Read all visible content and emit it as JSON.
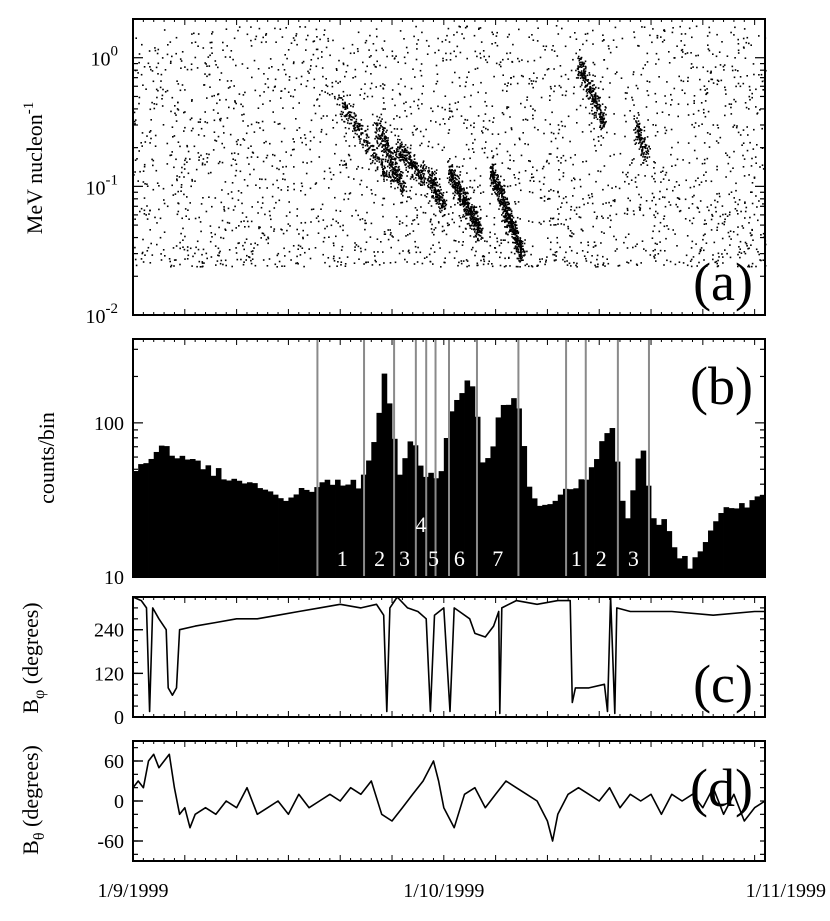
{
  "chart_data": [
    {
      "panel": "a",
      "type": "scatter",
      "panel_label": "(a)",
      "ylabel": "MeV nucleon",
      "ylabel_sup": "-1",
      "y_scale": "log",
      "ylim": [
        0.01,
        2.0
      ],
      "xlim": [
        0,
        61
      ],
      "yticks": [
        {
          "value": 1,
          "base": "10",
          "exp": "0"
        },
        {
          "value": 0.1,
          "base": "10",
          "exp": "-1"
        },
        {
          "value": 0.01,
          "base": "10",
          "exp": "-2"
        }
      ],
      "background": {
        "x_range": [
          0,
          61
        ],
        "y_range": [
          0.024,
          1.8
        ],
        "count": 2600
      },
      "clusters": [
        {
          "x": [
            20,
            25
          ],
          "y": [
            0.45,
            0.11
          ],
          "count": 260
        },
        {
          "x": [
            23.5,
            26
          ],
          "y": [
            0.3,
            0.1
          ],
          "count": 280
        },
        {
          "x": [
            25.5,
            28
          ],
          "y": [
            0.2,
            0.12
          ],
          "count": 240
        },
        {
          "x": [
            28.5,
            30
          ],
          "y": [
            0.12,
            0.07
          ],
          "count": 180
        },
        {
          "x": [
            30.5,
            33.5
          ],
          "y": [
            0.13,
            0.045
          ],
          "count": 460
        },
        {
          "x": [
            34.5,
            37.5
          ],
          "y": [
            0.14,
            0.03
          ],
          "count": 520
        },
        {
          "x": [
            43,
            45.5
          ],
          "y": [
            0.9,
            0.3
          ],
          "count": 280
        },
        {
          "x": [
            48.5,
            49.5
          ],
          "y": [
            0.3,
            0.18
          ],
          "count": 120
        }
      ]
    },
    {
      "panel": "b",
      "type": "bar",
      "panel_label": "(b)",
      "ylabel": "counts/bin",
      "y_scale": "log",
      "ylim": [
        10,
        350
      ],
      "xlim": [
        0,
        61
      ],
      "bin_width": 0.5,
      "yticks": [
        {
          "value": 10,
          "label": "10"
        },
        {
          "value": 100,
          "label": "100"
        }
      ],
      "profile": [
        [
          0,
          50
        ],
        [
          3,
          70
        ],
        [
          6,
          55
        ],
        [
          9,
          45
        ],
        [
          12,
          38
        ],
        [
          15,
          33
        ],
        [
          18,
          40
        ],
        [
          22,
          40
        ],
        [
          23.5,
          80
        ],
        [
          24.3,
          230
        ],
        [
          25,
          100
        ],
        [
          25.7,
          45
        ],
        [
          26.5,
          70
        ],
        [
          27,
          90
        ],
        [
          27.5,
          55
        ],
        [
          28.2,
          45
        ],
        [
          29,
          45
        ],
        [
          29.8,
          50
        ],
        [
          30.3,
          80
        ],
        [
          31,
          140
        ],
        [
          32,
          180
        ],
        [
          33,
          160
        ],
        [
          33.8,
          50
        ],
        [
          34.5,
          60
        ],
        [
          35.5,
          130
        ],
        [
          36.5,
          140
        ],
        [
          37.5,
          120
        ],
        [
          38,
          45
        ],
        [
          39,
          30
        ],
        [
          40,
          28
        ],
        [
          41,
          32
        ],
        [
          42,
          38
        ],
        [
          43,
          40
        ],
        [
          44,
          45
        ],
        [
          45,
          70
        ],
        [
          46,
          100
        ],
        [
          46.5,
          85
        ],
        [
          47,
          40
        ],
        [
          47.5,
          24
        ],
        [
          48,
          28
        ],
        [
          48.5,
          50
        ],
        [
          49.2,
          75
        ],
        [
          49.8,
          40
        ],
        [
          50.5,
          20
        ],
        [
          51.5,
          26
        ],
        [
          52.2,
          15
        ],
        [
          53,
          13
        ],
        [
          54,
          12
        ],
        [
          55,
          16
        ],
        [
          56,
          22
        ],
        [
          57,
          27
        ],
        [
          58,
          28
        ],
        [
          59,
          30
        ],
        [
          60,
          32
        ],
        [
          61,
          34
        ]
      ],
      "event_lines_x": [
        17.8,
        22.3,
        25.2,
        27.3,
        28.3,
        29.2,
        30.5,
        33.2,
        37.2,
        41.8,
        43.7,
        46.8,
        49.8
      ],
      "event_labels": [
        {
          "text": "1",
          "x": 20.2,
          "row": "low"
        },
        {
          "text": "2",
          "x": 23.8,
          "row": "low"
        },
        {
          "text": "3",
          "x": 26.2,
          "row": "low"
        },
        {
          "text": "4",
          "x": 27.8,
          "row": "high"
        },
        {
          "text": "5",
          "x": 29.0,
          "row": "low"
        },
        {
          "text": "6",
          "x": 31.5,
          "row": "low"
        },
        {
          "text": "7",
          "x": 35.2,
          "row": "low"
        },
        {
          "text": "1",
          "x": 42.8,
          "row": "low"
        },
        {
          "text": "2",
          "x": 45.2,
          "row": "low"
        },
        {
          "text": "3",
          "x": 48.3,
          "row": "low"
        }
      ]
    },
    {
      "panel": "c",
      "type": "line",
      "panel_label": "(c)",
      "ylabel": "B",
      "ylabel_sub": "φ",
      "ylabel_unit": " (degrees)",
      "ylim": [
        0,
        330
      ],
      "xlim": [
        0,
        61
      ],
      "yticks": [
        0,
        120,
        240
      ],
      "points": [
        [
          0,
          330
        ],
        [
          0.8,
          320
        ],
        [
          1.3,
          300
        ],
        [
          1.6,
          15
        ],
        [
          1.9,
          300
        ],
        [
          2.5,
          270
        ],
        [
          3.2,
          240
        ],
        [
          3.4,
          80
        ],
        [
          3.8,
          60
        ],
        [
          4.2,
          80
        ],
        [
          4.5,
          240
        ],
        [
          6,
          250
        ],
        [
          8,
          260
        ],
        [
          10,
          270
        ],
        [
          12,
          270
        ],
        [
          14,
          280
        ],
        [
          16,
          290
        ],
        [
          18,
          300
        ],
        [
          20,
          310
        ],
        [
          22,
          300
        ],
        [
          23.5,
          310
        ],
        [
          24.2,
          280
        ],
        [
          24.5,
          15
        ],
        [
          24.8,
          300
        ],
        [
          25.5,
          340
        ],
        [
          26.5,
          300
        ],
        [
          27.5,
          290
        ],
        [
          28.3,
          270
        ],
        [
          28.7,
          15
        ],
        [
          29.1,
          280
        ],
        [
          30,
          300
        ],
        [
          30.6,
          15
        ],
        [
          31,
          300
        ],
        [
          31.5,
          290
        ],
        [
          32.5,
          270
        ],
        [
          33,
          230
        ],
        [
          34,
          220
        ],
        [
          34.8,
          250
        ],
        [
          35.3,
          290
        ],
        [
          35.4,
          10
        ],
        [
          35.6,
          300
        ],
        [
          37,
          320
        ],
        [
          39,
          310
        ],
        [
          41,
          320
        ],
        [
          42.2,
          320
        ],
        [
          42.4,
          40
        ],
        [
          42.7,
          80
        ],
        [
          44,
          80
        ],
        [
          45.5,
          90
        ],
        [
          45.8,
          15
        ],
        [
          46.1,
          330
        ],
        [
          46.5,
          10
        ],
        [
          46.7,
          300
        ],
        [
          48,
          290
        ],
        [
          52,
          290
        ],
        [
          56,
          280
        ],
        [
          60,
          290
        ],
        [
          61,
          290
        ]
      ]
    },
    {
      "panel": "d",
      "type": "line",
      "panel_label": "(d)",
      "ylabel": "B",
      "ylabel_sub": "θ",
      "ylabel_unit": " (degrees)",
      "ylim": [
        -90,
        90
      ],
      "xlim": [
        0,
        61
      ],
      "yticks": [
        60,
        0,
        -60
      ],
      "points": [
        [
          0,
          20
        ],
        [
          0.5,
          30
        ],
        [
          1,
          20
        ],
        [
          1.5,
          60
        ],
        [
          2,
          70
        ],
        [
          2.5,
          50
        ],
        [
          3,
          60
        ],
        [
          3.5,
          70
        ],
        [
          4,
          20
        ],
        [
          4.5,
          -20
        ],
        [
          5,
          -10
        ],
        [
          5.5,
          -40
        ],
        [
          6,
          -20
        ],
        [
          7,
          -10
        ],
        [
          8,
          -20
        ],
        [
          9,
          0
        ],
        [
          10,
          -10
        ],
        [
          11,
          20
        ],
        [
          12,
          -20
        ],
        [
          13,
          -10
        ],
        [
          14,
          0
        ],
        [
          15,
          -20
        ],
        [
          16,
          10
        ],
        [
          17,
          -10
        ],
        [
          18,
          0
        ],
        [
          19,
          10
        ],
        [
          20,
          0
        ],
        [
          21,
          20
        ],
        [
          22,
          10
        ],
        [
          23,
          30
        ],
        [
          24,
          -20
        ],
        [
          25,
          -30
        ],
        [
          26,
          -10
        ],
        [
          27,
          10
        ],
        [
          28,
          30
        ],
        [
          29,
          60
        ],
        [
          29.5,
          30
        ],
        [
          30,
          -10
        ],
        [
          31,
          -40
        ],
        [
          32,
          10
        ],
        [
          33,
          20
        ],
        [
          34,
          -10
        ],
        [
          35,
          10
        ],
        [
          36,
          30
        ],
        [
          37,
          20
        ],
        [
          38,
          10
        ],
        [
          39,
          0
        ],
        [
          40,
          -30
        ],
        [
          40.5,
          -60
        ],
        [
          41,
          -20
        ],
        [
          42,
          10
        ],
        [
          43,
          20
        ],
        [
          44,
          10
        ],
        [
          45,
          0
        ],
        [
          46,
          20
        ],
        [
          47,
          -10
        ],
        [
          48,
          10
        ],
        [
          49,
          0
        ],
        [
          50,
          10
        ],
        [
          51,
          -20
        ],
        [
          52,
          10
        ],
        [
          53,
          0
        ],
        [
          54,
          10
        ],
        [
          55,
          -10
        ],
        [
          56,
          20
        ],
        [
          57,
          -20
        ],
        [
          58,
          10
        ],
        [
          59,
          -30
        ],
        [
          60,
          -10
        ],
        [
          61,
          0
        ]
      ]
    }
  ],
  "x_axis": {
    "range": [
      0,
      61
    ],
    "ticks": [
      {
        "value": 0,
        "label": "1/9/1999"
      },
      {
        "value": 30,
        "label": "1/10/1999"
      },
      {
        "value": 61,
        "label": "1/11/1999"
      }
    ]
  }
}
